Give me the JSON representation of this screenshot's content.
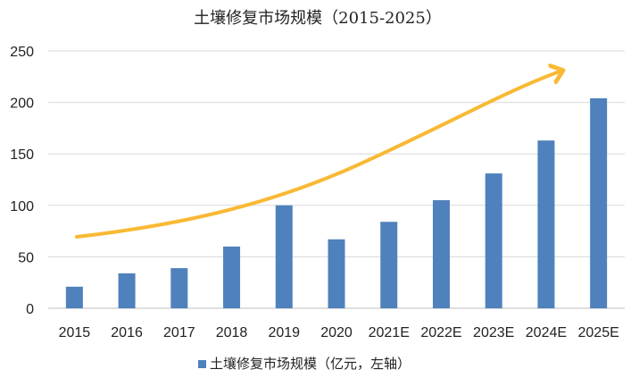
{
  "chart_data": {
    "type": "bar",
    "title": "土壤修复市场规模（2015-2025）",
    "categories": [
      "2015",
      "2016",
      "2017",
      "2018",
      "2019",
      "2020",
      "2021E",
      "2022E",
      "2023E",
      "2024E",
      "2025E"
    ],
    "series": [
      {
        "name": "土壤修复市场规模（亿元，左轴）",
        "values": [
          21,
          34,
          39,
          60,
          100,
          67,
          84,
          105,
          131,
          163,
          204
        ]
      }
    ],
    "ylim": [
      0,
      250
    ],
    "yticks": [
      "0",
      "50",
      "100",
      "150",
      "200",
      "250"
    ],
    "grid": true,
    "legend": "bottom",
    "trend_arrow": true
  },
  "colors": {
    "bar": "#4f81bd",
    "arrow": "#f9b934",
    "grid": "#d9d9d9",
    "axis": "#bfbfbf"
  }
}
